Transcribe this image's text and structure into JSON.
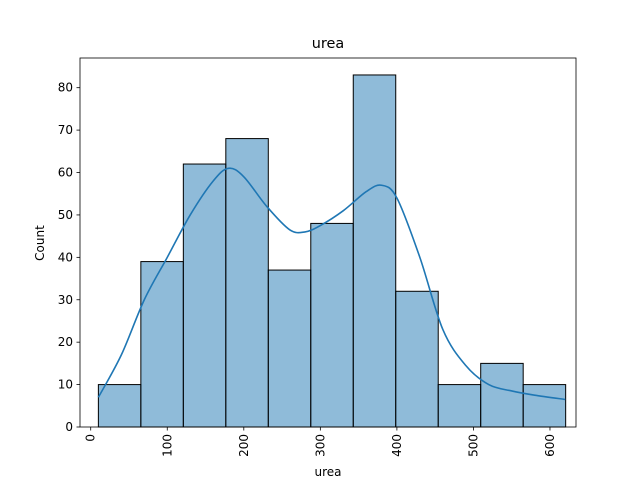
{
  "chart_data": {
    "type": "histogram",
    "title": "urea",
    "xlabel": "urea",
    "ylabel": "Count",
    "xlim": [
      -14,
      634
    ],
    "ylim": [
      0,
      87
    ],
    "xticks": [
      0,
      100,
      200,
      300,
      400,
      500,
      600
    ],
    "yticks": [
      0,
      10,
      20,
      30,
      40,
      50,
      60,
      70,
      80
    ],
    "xtick_rotation": 90,
    "bin_edges": [
      10,
      65.5,
      121,
      176.5,
      232,
      287.5,
      343,
      398.5,
      454,
      509.5,
      565,
      620.5
    ],
    "counts": [
      10,
      39,
      62,
      68,
      37,
      48,
      83,
      32,
      10,
      15,
      10
    ],
    "bar_color": "#1f77b4",
    "kde": {
      "color": "#1f77b4",
      "x": [
        10,
        40,
        70,
        100,
        130,
        160,
        180,
        200,
        230,
        260,
        280,
        300,
        330,
        360,
        380,
        400,
        430,
        460,
        490,
        520,
        550,
        580,
        620
      ],
      "y": [
        7,
        17,
        30,
        40,
        50,
        58,
        61,
        59,
        52,
        46.5,
        46,
        47.5,
        51,
        55.5,
        57,
        54,
        40,
        23,
        14.5,
        10,
        8.5,
        7.5,
        6.5
      ]
    },
    "grid": false,
    "legend": "none"
  }
}
